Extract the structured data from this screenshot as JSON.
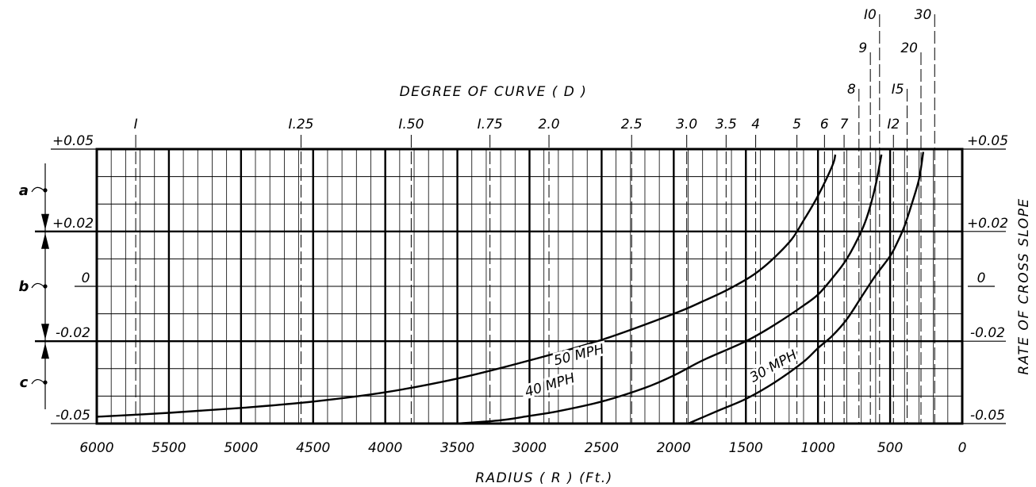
{
  "chart_data": {
    "type": "line",
    "title": "DEGREE OF CURVE ( D )",
    "xlabel": "RADIUS ( R ) (Ft.)",
    "ylabel": "RATE OF CROSS SLOPE",
    "xlim": [
      6000,
      0
    ],
    "ylim": [
      -0.05,
      0.05
    ],
    "x_ticks": [
      "6000",
      "5500",
      "5000",
      "4500",
      "4000",
      "3500",
      "3000",
      "2500",
      "2000",
      "1500",
      "1000",
      "500",
      "0"
    ],
    "y_left_ticks": [
      {
        "y": 0.05,
        "label": "+0.05"
      },
      {
        "y": 0.02,
        "label": "+0.02"
      },
      {
        "y": 0,
        "label": "0"
      },
      {
        "y": -0.02,
        "label": "-0.02"
      },
      {
        "y": -0.05,
        "label": "-0.05"
      }
    ],
    "y_right_ticks": [
      {
        "y": 0.05,
        "label": "+0.05"
      },
      {
        "y": 0.02,
        "label": "+0.02"
      },
      {
        "y": 0,
        "label": "0"
      },
      {
        "y": -0.02,
        "label": "-0.02"
      },
      {
        "y": -0.05,
        "label": "-0.05"
      }
    ],
    "degree_ticks": [
      {
        "label": "I",
        "radius": 5730
      },
      {
        "label": "I.25",
        "radius": 4584
      },
      {
        "label": "I.50",
        "radius": 3820
      },
      {
        "label": "I.75",
        "radius": 3274
      },
      {
        "label": "2.0",
        "radius": 2865
      },
      {
        "label": "2.5",
        "radius": 2292
      },
      {
        "label": "3.0",
        "radius": 1910
      },
      {
        "label": "3.5",
        "radius": 1637
      },
      {
        "label": "4",
        "radius": 1432
      },
      {
        "label": "5",
        "radius": 1146
      },
      {
        "label": "6",
        "radius": 955
      },
      {
        "label": "7",
        "radius": 819
      },
      {
        "label": "8",
        "radius": 716
      },
      {
        "label": "9",
        "radius": 637
      },
      {
        "label": "I0",
        "radius": 573
      },
      {
        "label": "I2",
        "radius": 477
      },
      {
        "label": "I5",
        "radius": 382
      },
      {
        "label": "20",
        "radius": 286
      },
      {
        "label": "30",
        "radius": 191
      }
    ],
    "zones": [
      {
        "label": "a",
        "y": 0.035
      },
      {
        "label": "b",
        "y": 0.0
      },
      {
        "label": "c",
        "y": -0.035
      }
    ],
    "series": [
      {
        "name": "50 MPH",
        "x": [
          6000,
          5500,
          5000,
          4500,
          4000,
          3500,
          3000,
          2500,
          2000,
          1800,
          1600,
          1400,
          1200,
          1100,
          1000,
          900,
          880
        ],
        "y": [
          -0.0475,
          -0.0461,
          -0.0443,
          -0.042,
          -0.0386,
          -0.0336,
          -0.027,
          -0.0195,
          -0.01,
          -0.0055,
          -0.0005,
          0.006,
          0.016,
          0.024,
          0.033,
          0.044,
          0.048
        ]
      },
      {
        "name": "40 MPH",
        "x": [
          3500,
          3200,
          3000,
          2800,
          2500,
          2200,
          2000,
          1800,
          1500,
          1300,
          1100,
          1000,
          900,
          800,
          700,
          650,
          600,
          560
        ],
        "y": [
          -0.05,
          -0.0488,
          -0.0472,
          -0.0455,
          -0.042,
          -0.037,
          -0.0325,
          -0.027,
          -0.02,
          -0.014,
          -0.007,
          -0.003,
          0.003,
          0.01,
          0.02,
          0.027,
          0.037,
          0.048
        ]
      },
      {
        "name": "30 MPH",
        "x": [
          1900,
          1700,
          1500,
          1300,
          1100,
          1000,
          900,
          800,
          700,
          600,
          500,
          450,
          400,
          350,
          300,
          270
        ],
        "y": [
          -0.05,
          -0.0455,
          -0.041,
          -0.035,
          -0.0275,
          -0.0225,
          -0.018,
          -0.012,
          -0.004,
          0.004,
          0.011,
          0.016,
          0.022,
          0.03,
          0.039,
          0.049
        ]
      }
    ],
    "series_labels": [
      {
        "text": "50 MPH",
        "x": 2650,
        "y": -0.0265,
        "angle": -14
      },
      {
        "text": "40 MPH",
        "x": 2850,
        "y": -0.0375,
        "angle": -17
      },
      {
        "text": "30 MPH",
        "x": 1295,
        "y": -0.0305,
        "angle": -29
      }
    ]
  }
}
